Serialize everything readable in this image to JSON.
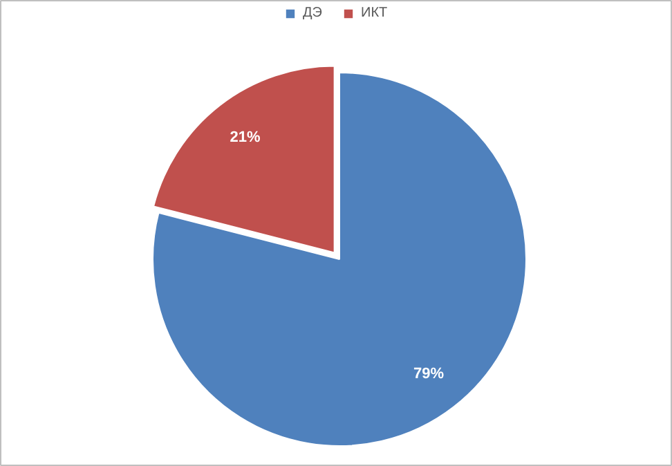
{
  "chart_data": {
    "type": "pie",
    "categories": [
      "ДЭ",
      "ИКТ"
    ],
    "values": [
      79,
      21
    ],
    "colors": [
      "#4f81bd",
      "#c0504d"
    ],
    "value_labels": [
      "79%",
      "21%"
    ],
    "legend": "top"
  }
}
